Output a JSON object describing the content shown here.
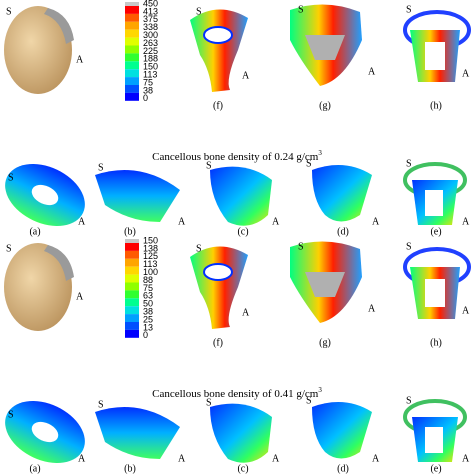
{
  "blocks": [
    {
      "legend": [
        "450",
        "413",
        "375",
        "338",
        "300",
        "263",
        "225",
        "188",
        "150",
        "113",
        "75",
        "38",
        "0"
      ],
      "top_labels": [
        "(f)",
        "(g)",
        "(h)"
      ],
      "caption": "Cancellous bone density of 0.24 g/cm",
      "caption_sup": "3",
      "bottom_labels": [
        "(a)",
        "(b)",
        "(c)",
        "(d)",
        "(e)"
      ]
    },
    {
      "legend": [
        "150",
        "138",
        "125",
        "113",
        "100",
        "88",
        "75",
        "63",
        "50",
        "38",
        "25",
        "13",
        "0"
      ],
      "top_labels": [
        "(f)",
        "(g)",
        "(h)"
      ],
      "caption": "Cancellous bone density of 0.41 g/cm",
      "caption_sup": "3",
      "bottom_labels": [
        "(a)",
        "(b)",
        "(c)",
        "(d)",
        "(e)"
      ]
    }
  ],
  "marker_s": "S",
  "marker_a": "A"
}
